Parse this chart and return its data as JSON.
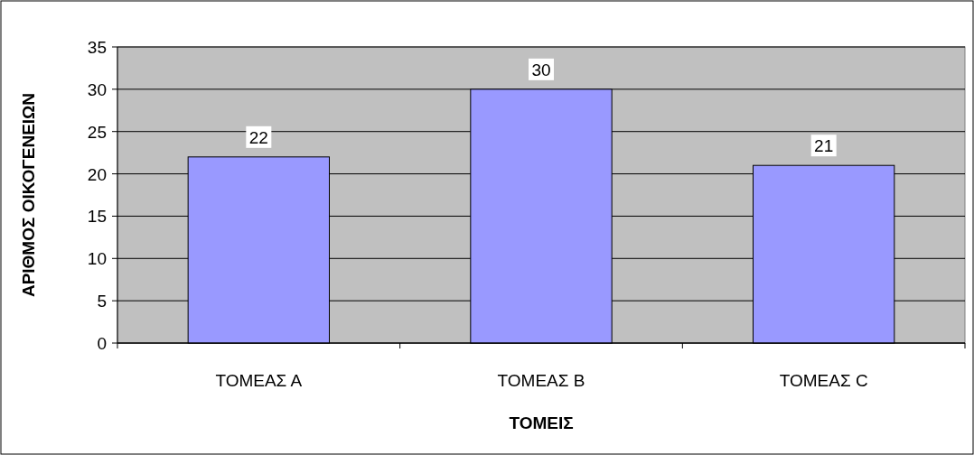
{
  "chart_data": {
    "type": "bar",
    "xlabel": "ΤΟΜΕΙΣ",
    "ylabel": "ΑΡΙΘΜΟΣ ΟΙΚΟΓΕΝΕΙΩΝ",
    "categories": [
      "ΤΟΜΕΑΣ Α",
      "ΤΟΜΕΑΣ Β",
      "ΤΟΜΕΑΣ C"
    ],
    "values": [
      22,
      30,
      21
    ],
    "color": "#9999ff",
    "ylim": [
      0,
      35
    ],
    "yticks": [
      0,
      5,
      10,
      15,
      20,
      25,
      30,
      35
    ],
    "grid": "y",
    "data_labels": true
  }
}
